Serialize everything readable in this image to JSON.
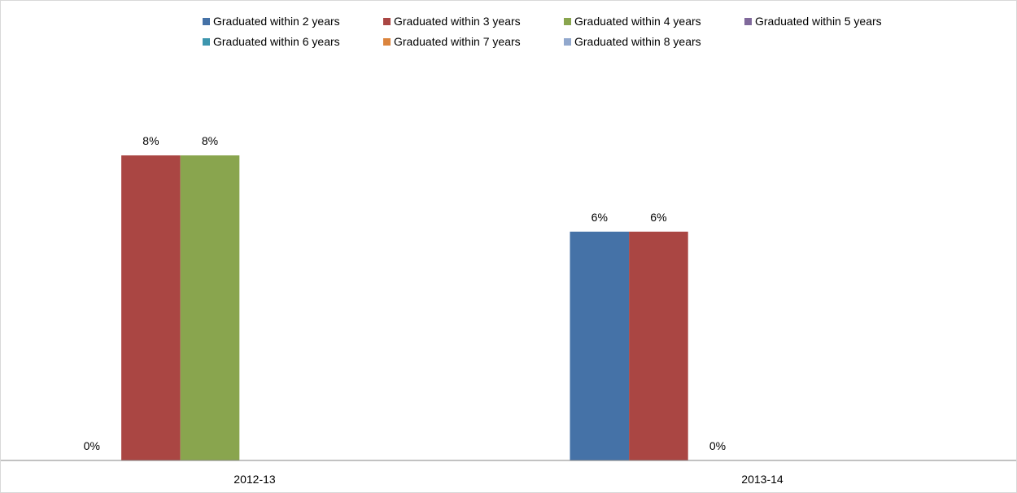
{
  "chart_data": {
    "type": "bar",
    "title": "",
    "xlabel": "",
    "ylabel": "",
    "categories": [
      "2012-13",
      "2013-14"
    ],
    "ylim": [
      0,
      9
    ],
    "grid": false,
    "legend_position": "top",
    "series": [
      {
        "name": "Graduated within 2 years",
        "color": "#4572A7",
        "values": [
          0,
          6
        ]
      },
      {
        "name": "Graduated within 3 years",
        "color": "#AA4643",
        "values": [
          8,
          6
        ]
      },
      {
        "name": "Graduated within 4 years",
        "color": "#89A54E",
        "values": [
          8,
          0
        ]
      },
      {
        "name": "Graduated within 5 years",
        "color": "#80699B",
        "values": [
          null,
          null
        ]
      },
      {
        "name": "Graduated within 6 years",
        "color": "#3D96AE",
        "values": [
          null,
          null
        ]
      },
      {
        "name": "Graduated within 7 years",
        "color": "#DB843D",
        "values": [
          null,
          null
        ]
      },
      {
        "name": "Graduated within 8 years",
        "color": "#92A8CD",
        "values": [
          null,
          null
        ]
      }
    ],
    "data_labels": [
      {
        "category": 0,
        "series": 0,
        "text": "0%"
      },
      {
        "category": 0,
        "series": 1,
        "text": "8%"
      },
      {
        "category": 0,
        "series": 2,
        "text": "8%"
      },
      {
        "category": 1,
        "series": 0,
        "text": "6%"
      },
      {
        "category": 1,
        "series": 1,
        "text": "6%"
      },
      {
        "category": 1,
        "series": 2,
        "text": "0%"
      }
    ]
  }
}
